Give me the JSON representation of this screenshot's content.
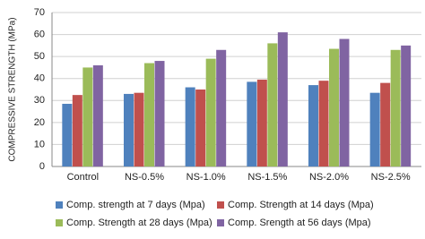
{
  "chart_data": {
    "type": "bar",
    "y_label": "COMPRESSIVE STRENGTH (MPa)",
    "categories": [
      "Control",
      "NS-0.5%",
      "NS-1.0%",
      "NS-1.5%",
      "NS-2.0%",
      "NS-2.5%"
    ],
    "series": [
      {
        "name": "Comp. strength at 7 days (Mpa)",
        "color": "#4f81bd",
        "values": [
          28.5,
          33,
          36,
          38.5,
          37,
          33.5
        ]
      },
      {
        "name": "Comp. Strength at 14 days (Mpa)",
        "color": "#c0504d",
        "values": [
          32.5,
          33.5,
          35,
          39.5,
          39,
          38
        ]
      },
      {
        "name": "Comp. Strength at 28 days (Mpa)",
        "color": "#9bbb59",
        "values": [
          45,
          47,
          49,
          56,
          53.5,
          53
        ]
      },
      {
        "name": "Comp. Srength at 56 days (Mpa)",
        "color": "#8064a2",
        "values": [
          46,
          48,
          53,
          61,
          58,
          55
        ]
      }
    ],
    "ylim": [
      0,
      70
    ],
    "yticks": [
      0,
      10,
      20,
      30,
      40,
      50,
      60,
      70
    ],
    "grid": true
  }
}
